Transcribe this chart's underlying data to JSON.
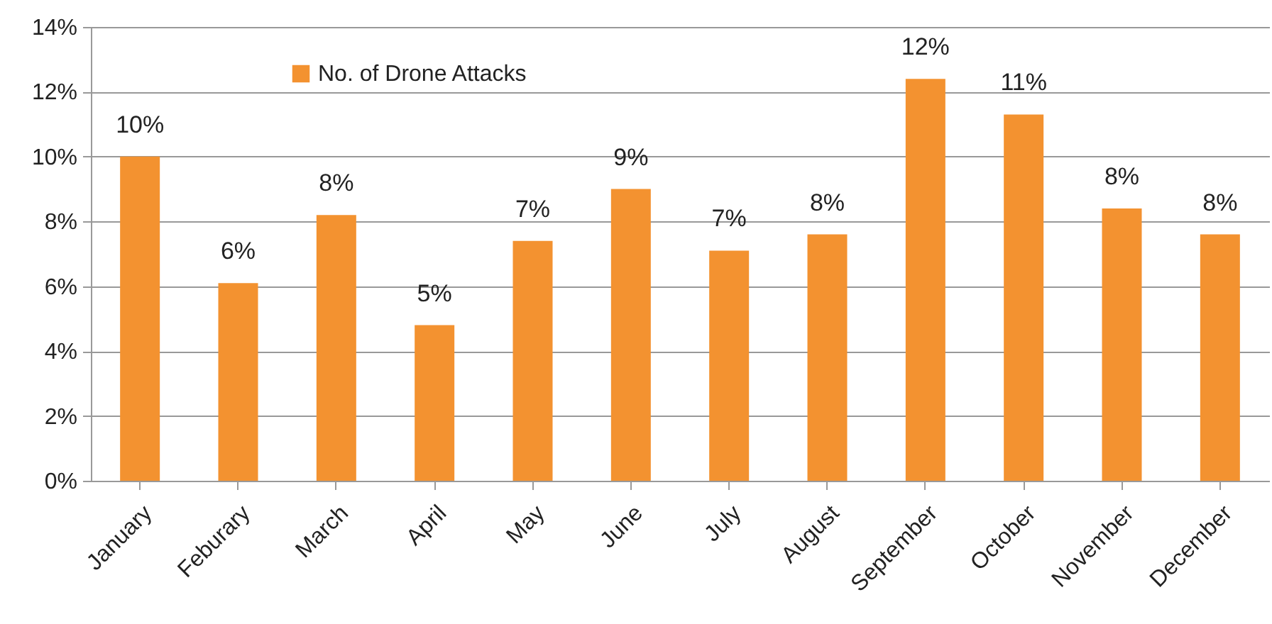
{
  "chart_data": {
    "type": "bar",
    "categories": [
      "January",
      "Feburary",
      "March",
      "April",
      "May",
      "June",
      "July",
      "August",
      "September",
      "October",
      "November",
      "December"
    ],
    "series": [
      {
        "name": "No. of Drone Attacks",
        "color": "#f39230",
        "values": [
          10.0,
          6.1,
          8.2,
          4.8,
          7.4,
          9.0,
          7.1,
          7.6,
          12.4,
          11.3,
          8.4,
          7.6
        ],
        "value_labels": [
          "10%",
          "6%",
          "8%",
          "5%",
          "7%",
          "9%",
          "7%",
          "8%",
          "12%",
          "11%",
          "8%",
          "8%"
        ]
      }
    ],
    "ylim": [
      0,
      14
    ],
    "yticks": [
      {
        "value": 0,
        "label": "0%"
      },
      {
        "value": 2,
        "label": "2%"
      },
      {
        "value": 4,
        "label": "4%"
      },
      {
        "value": 6,
        "label": "6%"
      },
      {
        "value": 8,
        "label": "8%"
      },
      {
        "value": 10,
        "label": "10%"
      },
      {
        "value": 12,
        "label": "12%"
      },
      {
        "value": 14,
        "label": "14%"
      }
    ],
    "grid": "y",
    "legend": "top left"
  }
}
